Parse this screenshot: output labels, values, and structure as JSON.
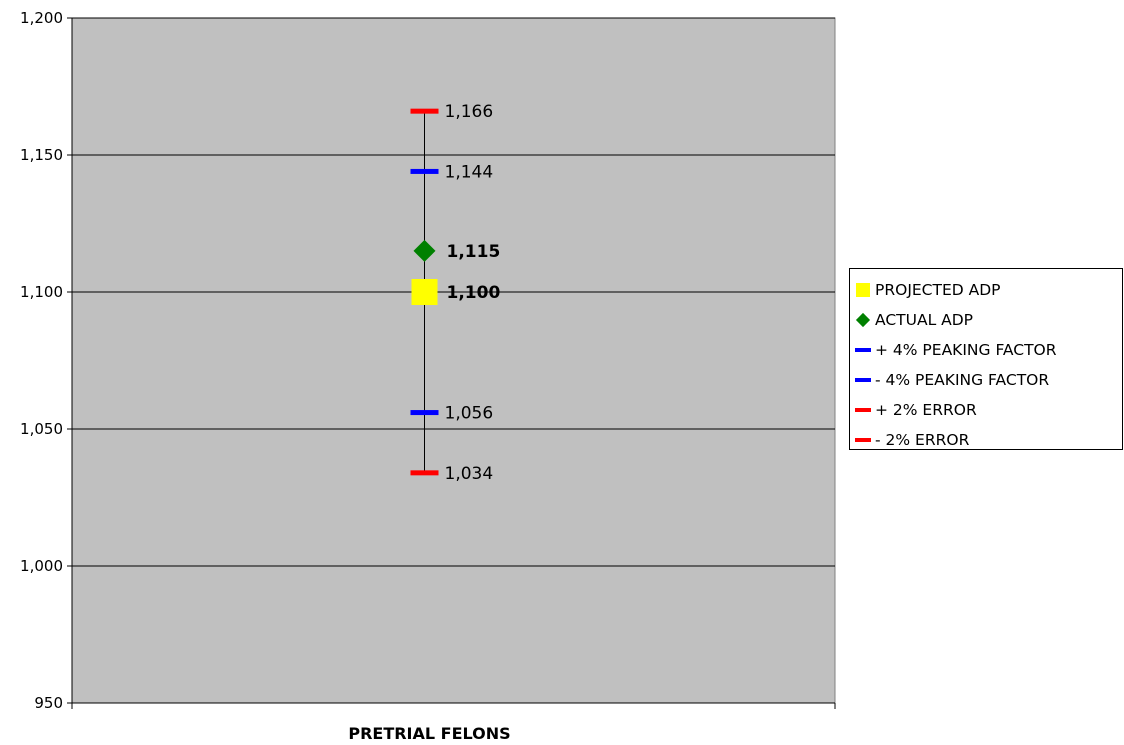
{
  "chart_data": {
    "type": "scatter",
    "title": "",
    "xlabel": "",
    "ylabel": "",
    "categories": [
      "PRETRIAL FELONS"
    ],
    "ylim": [
      950,
      1200
    ],
    "yticks": [
      950,
      1000,
      1050,
      1100,
      1150,
      1200
    ],
    "ytick_labels": [
      "950",
      "1,000",
      "1,050",
      "1,100",
      "1,150",
      "1,200"
    ],
    "grid": true,
    "legend_position": "right",
    "series": [
      {
        "name": "PROJECTED ADP",
        "marker": "square",
        "color": "#ffff00",
        "values": [
          1100
        ],
        "label": "1,100",
        "bold": true
      },
      {
        "name": "ACTUAL ADP",
        "marker": "diamond",
        "color": "#008000",
        "values": [
          1115
        ],
        "label": "1,115",
        "bold": true
      },
      {
        "name": "+ 4% PEAKING FACTOR",
        "marker": "dash",
        "color": "#0000ff",
        "values": [
          1144
        ],
        "label": "1,144",
        "bold": false
      },
      {
        "name": "- 4% PEAKING FACTOR",
        "marker": "dash",
        "color": "#0000ff",
        "values": [
          1056
        ],
        "label": "1,056",
        "bold": false
      },
      {
        "name": "+ 2% ERROR",
        "marker": "dash",
        "color": "#ff0000",
        "values": [
          1166
        ],
        "label": "1,166",
        "bold": false
      },
      {
        "name": "- 2% ERROR",
        "marker": "dash",
        "color": "#ff0000",
        "values": [
          1034
        ],
        "label": "1,034",
        "bold": false
      }
    ],
    "range_line": [
      1034,
      1166
    ],
    "plot_background": "#c0c0c0"
  }
}
